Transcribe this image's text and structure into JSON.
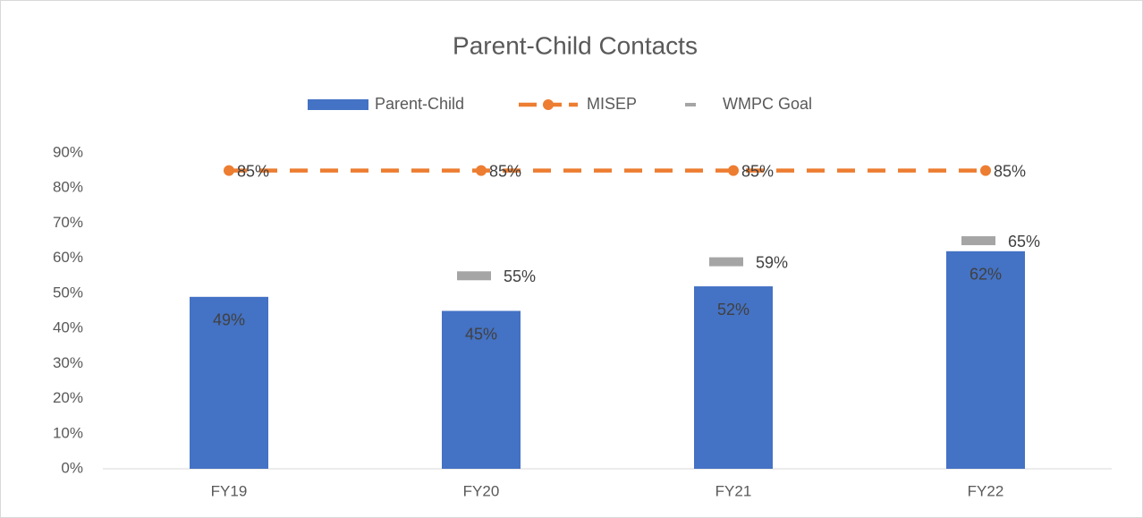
{
  "chart_data": {
    "type": "combo",
    "title": "Parent-Child Contacts",
    "categories": [
      "FY19",
      "FY20",
      "FY21",
      "FY22"
    ],
    "series": [
      {
        "name": "Parent-Child",
        "type": "bar",
        "color": "#4472c4",
        "values": [
          49,
          45,
          52,
          62
        ],
        "value_labels": [
          "49%",
          "45%",
          "52%",
          "62%"
        ]
      },
      {
        "name": "MISEP",
        "type": "line",
        "color": "#ed7d31",
        "values": [
          85,
          85,
          85,
          85
        ],
        "value_labels": [
          "85%",
          "85%",
          "85%",
          "85%"
        ]
      },
      {
        "name": "WMPC Goal",
        "type": "marker",
        "color": "#a5a5a5",
        "values": [
          null,
          55,
          59,
          65
        ],
        "value_labels": [
          null,
          "55%",
          "59%",
          "65%"
        ]
      }
    ],
    "ylim": [
      0,
      90
    ],
    "yticks": [
      {
        "value": 0,
        "label": "0%"
      },
      {
        "value": 10,
        "label": "10%"
      },
      {
        "value": 20,
        "label": "20%"
      },
      {
        "value": 30,
        "label": "30%"
      },
      {
        "value": 40,
        "label": "40%"
      },
      {
        "value": 50,
        "label": "50%"
      },
      {
        "value": 60,
        "label": "60%"
      },
      {
        "value": 70,
        "label": "70%"
      },
      {
        "value": 80,
        "label": "80%"
      },
      {
        "value": 90,
        "label": "90%"
      }
    ],
    "grid": false,
    "legend": "top"
  }
}
